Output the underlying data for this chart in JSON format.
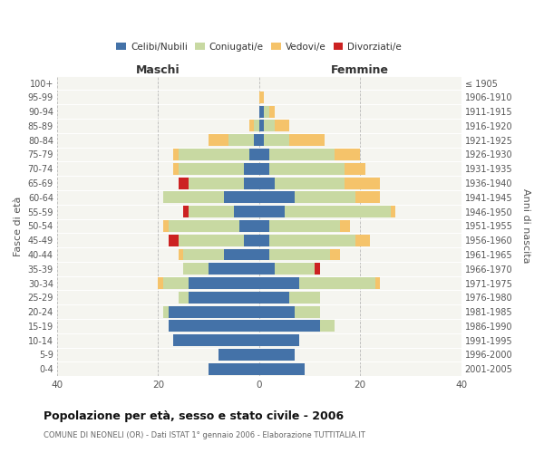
{
  "age_groups": [
    "0-4",
    "5-9",
    "10-14",
    "15-19",
    "20-24",
    "25-29",
    "30-34",
    "35-39",
    "40-44",
    "45-49",
    "50-54",
    "55-59",
    "60-64",
    "65-69",
    "70-74",
    "75-79",
    "80-84",
    "85-89",
    "90-94",
    "95-99",
    "100+"
  ],
  "birth_years": [
    "2001-2005",
    "1996-2000",
    "1991-1995",
    "1986-1990",
    "1981-1985",
    "1976-1980",
    "1971-1975",
    "1966-1970",
    "1961-1965",
    "1956-1960",
    "1951-1955",
    "1946-1950",
    "1941-1945",
    "1936-1940",
    "1931-1935",
    "1926-1930",
    "1921-1925",
    "1916-1920",
    "1911-1915",
    "1906-1910",
    "≤ 1905"
  ],
  "maschi": {
    "celibi": [
      10,
      8,
      17,
      18,
      18,
      14,
      14,
      10,
      7,
      3,
      4,
      5,
      7,
      3,
      3,
      2,
      1,
      0,
      0,
      0,
      0
    ],
    "coniugati": [
      0,
      0,
      0,
      0,
      1,
      2,
      5,
      5,
      8,
      13,
      14,
      9,
      12,
      11,
      13,
      14,
      5,
      1,
      0,
      0,
      0
    ],
    "vedovi": [
      0,
      0,
      0,
      0,
      0,
      0,
      1,
      0,
      1,
      0,
      1,
      0,
      0,
      0,
      1,
      1,
      4,
      1,
      0,
      0,
      0
    ],
    "divorziati": [
      0,
      0,
      0,
      0,
      0,
      0,
      0,
      0,
      0,
      2,
      0,
      1,
      0,
      2,
      0,
      0,
      0,
      0,
      0,
      0,
      0
    ]
  },
  "femmine": {
    "nubili": [
      9,
      7,
      8,
      12,
      7,
      6,
      8,
      3,
      2,
      2,
      2,
      5,
      7,
      3,
      2,
      2,
      1,
      1,
      1,
      0,
      0
    ],
    "coniugate": [
      0,
      0,
      0,
      3,
      5,
      6,
      15,
      8,
      12,
      17,
      14,
      21,
      12,
      14,
      15,
      13,
      5,
      2,
      1,
      0,
      0
    ],
    "vedove": [
      0,
      0,
      0,
      0,
      0,
      0,
      1,
      0,
      2,
      3,
      2,
      1,
      5,
      7,
      4,
      5,
      7,
      3,
      1,
      1,
      0
    ],
    "divorziate": [
      0,
      0,
      0,
      0,
      0,
      0,
      0,
      1,
      0,
      0,
      0,
      0,
      0,
      0,
      0,
      0,
      0,
      0,
      0,
      0,
      0
    ]
  },
  "colors": {
    "celibi": "#4472a8",
    "coniugati": "#c8d9a2",
    "vedovi": "#f5c36a",
    "divorziati": "#cc2222"
  },
  "xlim": 40,
  "title": "Popolazione per età, sesso e stato civile - 2006",
  "subtitle": "COMUNE DI NEONELI (OR) - Dati ISTAT 1° gennaio 2006 - Elaborazione TUTTITALIA.IT",
  "ylabel_left": "Fasce di età",
  "ylabel_right": "Anni di nascita",
  "xlabel_maschi": "Maschi",
  "xlabel_femmine": "Femmine",
  "bg_color": "#f5f5f0"
}
